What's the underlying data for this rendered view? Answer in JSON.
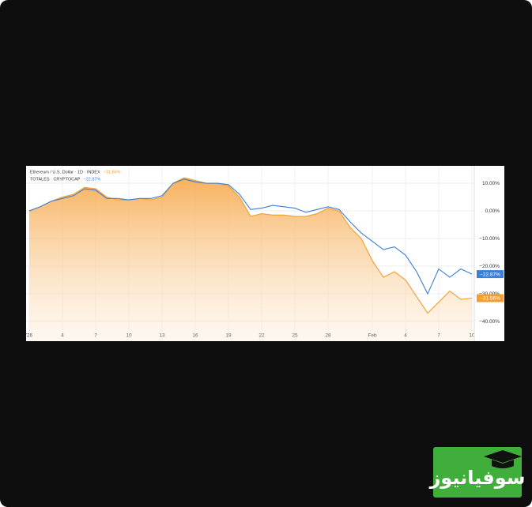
{
  "chart_data": {
    "type": "line",
    "categories": [
      "'26",
      null,
      null,
      "4",
      null,
      null,
      "7",
      null,
      null,
      "10",
      null,
      null,
      "13",
      null,
      null,
      "16",
      null,
      null,
      "19",
      null,
      null,
      "22",
      null,
      null,
      "25",
      null,
      null,
      "28",
      null,
      null,
      null,
      "Feb",
      null,
      null,
      "4",
      null,
      null,
      "7",
      null,
      null,
      "10"
    ],
    "series": [
      {
        "name": "Ethereum / U.S. Dollar · 1D · INDEX",
        "color": "#f29d2f",
        "area": true,
        "values": [
          0,
          1.5,
          3.5,
          5,
          6,
          8.5,
          8,
          5,
          4,
          4,
          4.5,
          4,
          5,
          10,
          12,
          11,
          10,
          10,
          9,
          5,
          -2,
          -1,
          -1.5,
          -1.5,
          -2,
          -2,
          -1,
          1,
          0,
          -6,
          -10,
          -18,
          -24,
          -22,
          -25,
          -31,
          -37,
          -33,
          -29,
          -32,
          -31.56
        ],
        "value_labels": [
          null,
          null,
          null,
          null,
          null,
          null,
          null,
          null,
          null,
          null,
          null,
          null,
          null,
          null,
          null,
          null,
          null,
          null,
          null,
          null,
          null,
          null,
          null,
          null,
          null,
          null,
          null,
          null,
          null,
          null,
          null,
          null,
          null,
          null,
          null,
          null,
          null,
          null,
          null,
          null,
          "−31.56%"
        ]
      },
      {
        "name": "TOTALES · CRYPTOCAP",
        "color": "#3c7fd6",
        "area": false,
        "values": [
          0,
          1.5,
          3.5,
          4.5,
          5.5,
          8,
          7.5,
          4.5,
          4.5,
          4,
          4.5,
          4.5,
          5.5,
          10,
          11.5,
          10.5,
          10,
          10,
          9.5,
          6,
          0.5,
          1,
          2,
          1.5,
          1,
          -0.5,
          0.5,
          1.5,
          0.5,
          -4,
          -8,
          -11,
          -14,
          -13,
          -16,
          -22,
          -30,
          -21,
          -24,
          -21,
          -22.87
        ],
        "value_labels": [
          null,
          null,
          null,
          null,
          null,
          null,
          null,
          null,
          null,
          null,
          null,
          null,
          null,
          null,
          null,
          null,
          null,
          null,
          null,
          null,
          null,
          null,
          null,
          null,
          null,
          null,
          null,
          null,
          null,
          null,
          null,
          null,
          null,
          null,
          null,
          null,
          null,
          null,
          null,
          null,
          "−22.87%"
        ]
      }
    ],
    "ylim": [
      -43.7,
      16.3
    ],
    "yticks": [
      {
        "value": 10,
        "label": "10.00%"
      },
      {
        "value": 0,
        "label": "0.00%"
      },
      {
        "value": -10,
        "label": "−10.00%"
      },
      {
        "value": -20,
        "label": "−20.00%"
      },
      {
        "value": -30,
        "label": "−30.00%"
      },
      {
        "value": -40,
        "label": "−40.00%"
      }
    ],
    "grid": true
  },
  "logo": {
    "text": "سوفیانیوز"
  }
}
